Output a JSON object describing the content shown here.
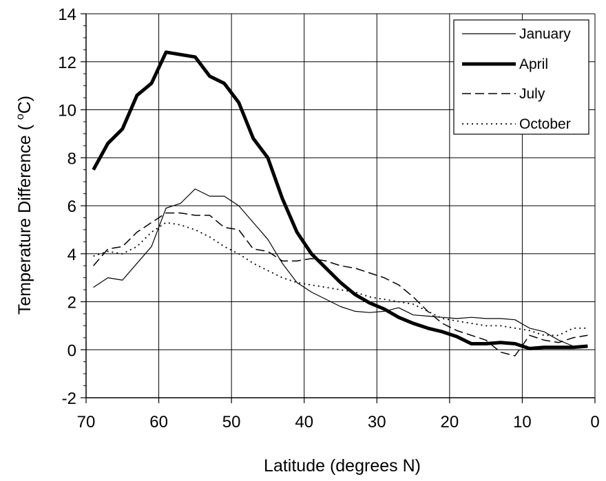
{
  "chart_data": {
    "type": "line",
    "title": "",
    "xlabel": "Latitude (degrees N)",
    "ylabel": "Temperature Difference ( °C)",
    "ylabel_parts": {
      "prefix": "Temperature Difference ( ",
      "sup": "o",
      "suffix": "C)"
    },
    "xlim": [
      70,
      0
    ],
    "ylim": [
      -2,
      14
    ],
    "x_reversed": true,
    "x_ticks": [
      70,
      60,
      50,
      40,
      30,
      20,
      10,
      0
    ],
    "y_ticks": [
      -2,
      0,
      2,
      4,
      6,
      8,
      10,
      12,
      14
    ],
    "grid": "horizontal and vertical at major ticks",
    "legend_position": "top-right",
    "series": [
      {
        "name": "January",
        "style": "thin-solid",
        "x": [
          69,
          67,
          65,
          63,
          61,
          59,
          57,
          55,
          53,
          51,
          49,
          47,
          45,
          43,
          41,
          39,
          37,
          35,
          33,
          31,
          29,
          27,
          25,
          23,
          21,
          19,
          17,
          15,
          13,
          11,
          9,
          7,
          5,
          3,
          1
        ],
        "y": [
          2.6,
          3.0,
          2.9,
          3.6,
          4.3,
          5.9,
          6.1,
          6.7,
          6.4,
          6.4,
          6.0,
          5.3,
          4.6,
          3.6,
          2.8,
          2.4,
          2.1,
          1.8,
          1.6,
          1.55,
          1.6,
          1.75,
          1.45,
          1.4,
          1.35,
          1.3,
          1.35,
          1.3,
          1.3,
          1.25,
          0.9,
          0.75,
          0.4,
          0.15,
          0.15
        ]
      },
      {
        "name": "April",
        "style": "thick-solid",
        "x": [
          69,
          67,
          65,
          63,
          61,
          59,
          57,
          55,
          53,
          51,
          49,
          47,
          45,
          43,
          41,
          39,
          37,
          35,
          33,
          31,
          29,
          27,
          25,
          23,
          21,
          19,
          17,
          15,
          13,
          11,
          9,
          7,
          5,
          3,
          1
        ],
        "y": [
          7.5,
          8.6,
          9.2,
          10.6,
          11.1,
          12.4,
          12.3,
          12.2,
          11.4,
          11.1,
          10.3,
          8.8,
          8.0,
          6.3,
          4.9,
          4.0,
          3.4,
          2.8,
          2.3,
          1.95,
          1.7,
          1.35,
          1.1,
          0.9,
          0.75,
          0.55,
          0.25,
          0.25,
          0.3,
          0.25,
          0.05,
          0.1,
          0.1,
          0.1,
          0.15
        ]
      },
      {
        "name": "July",
        "style": "dashed",
        "x": [
          69,
          67,
          65,
          63,
          61,
          59,
          57,
          55,
          53,
          51,
          49,
          47,
          45,
          43,
          41,
          39,
          37,
          35,
          33,
          31,
          29,
          27,
          25,
          23,
          21,
          19,
          17,
          15,
          13,
          11,
          9,
          7,
          5,
          3,
          1
        ],
        "y": [
          3.5,
          4.2,
          4.3,
          4.9,
          5.3,
          5.7,
          5.7,
          5.6,
          5.6,
          5.1,
          5.0,
          4.2,
          4.1,
          3.7,
          3.7,
          3.8,
          3.7,
          3.5,
          3.4,
          3.2,
          3.0,
          2.7,
          2.2,
          1.6,
          1.1,
          0.8,
          0.6,
          0.4,
          -0.1,
          -0.25,
          0.6,
          0.4,
          0.3,
          0.5,
          0.6
        ]
      },
      {
        "name": "October",
        "style": "dotted",
        "x": [
          69,
          67,
          65,
          63,
          61,
          59,
          57,
          55,
          53,
          51,
          49,
          47,
          45,
          43,
          41,
          39,
          37,
          35,
          33,
          31,
          29,
          27,
          25,
          23,
          21,
          19,
          17,
          15,
          13,
          11,
          9,
          7,
          5,
          3,
          1
        ],
        "y": [
          3.9,
          4.1,
          4.0,
          4.3,
          4.9,
          5.3,
          5.2,
          5.0,
          4.7,
          4.3,
          4.0,
          3.6,
          3.3,
          3.0,
          2.8,
          2.7,
          2.6,
          2.5,
          2.4,
          2.2,
          2.1,
          2.0,
          1.9,
          1.6,
          1.3,
          1.2,
          1.1,
          1.0,
          1.0,
          0.9,
          0.8,
          0.6,
          0.6,
          0.9,
          0.9
        ]
      }
    ]
  },
  "colors": {
    "background": "#ffffff",
    "lines": "#000000",
    "axis": "#000000",
    "grid": "#000000"
  }
}
